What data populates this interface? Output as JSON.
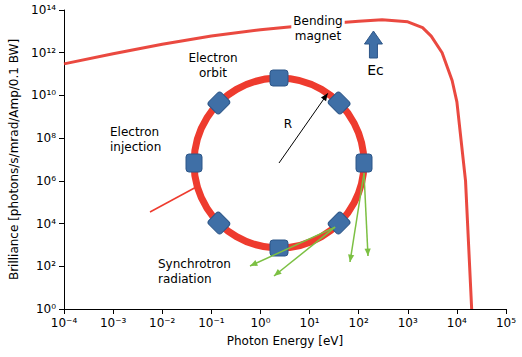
{
  "chart_data": {
    "type": "line",
    "x_label": "Photon Energy [eV]",
    "y_label": "Brilliance [photons/s/mrad/Amp/0.1 BW]",
    "x": [
      0.0001,
      0.001,
      0.01,
      0.1,
      1,
      10,
      100,
      300,
      1000,
      2000,
      3000,
      5000,
      8000,
      10000,
      15000,
      20000
    ],
    "values": [
      300000000000,
      900000000000,
      2500000000000,
      6000000000000,
      12000000000000,
      20000000000000,
      30000000000000,
      35000000000000,
      28000000000000,
      15000000000000,
      6000000000000,
      1000000000000,
      50000000000,
      5000000000,
      1000000,
      1
    ],
    "color": "#e8352b",
    "log": true,
    "grid": false,
    "xlim": [
      0.0001,
      100000
    ],
    "ylim": [
      1,
      100000000000000
    ],
    "xticks": [
      {
        "value": 0.0001,
        "label": "10⁻⁴"
      },
      {
        "value": 0.001,
        "label": "10⁻³"
      },
      {
        "value": 0.01,
        "label": "10⁻²"
      },
      {
        "value": 0.1,
        "label": "10⁻¹"
      },
      {
        "value": 1,
        "label": "10⁰"
      },
      {
        "value": 10,
        "label": "10¹"
      },
      {
        "value": 100,
        "label": "10²"
      },
      {
        "value": 1000,
        "label": "10³"
      },
      {
        "value": 10000,
        "label": "10⁴"
      },
      {
        "value": 100000,
        "label": "10⁵"
      }
    ],
    "yticks": [
      {
        "value": 1,
        "label": "10⁰"
      },
      {
        "value": 100,
        "label": "10²"
      },
      {
        "value": 10000,
        "label": "10⁴"
      },
      {
        "value": 1000000,
        "label": "10⁶"
      },
      {
        "value": 100000000,
        "label": "10⁸"
      },
      {
        "value": 10000000000,
        "label": "10¹⁰"
      },
      {
        "value": 1000000000000,
        "label": "10¹²"
      },
      {
        "value": 100000000000000,
        "label": "10¹⁴"
      }
    ],
    "annotations": [
      {
        "text": "Electron orbit"
      },
      {
        "text": "Bending magnet"
      },
      {
        "text": "R"
      },
      {
        "text": "Electron injection"
      },
      {
        "text": "Synchrotron radiation"
      },
      {
        "text": "Ec",
        "x": 200
      }
    ]
  }
}
